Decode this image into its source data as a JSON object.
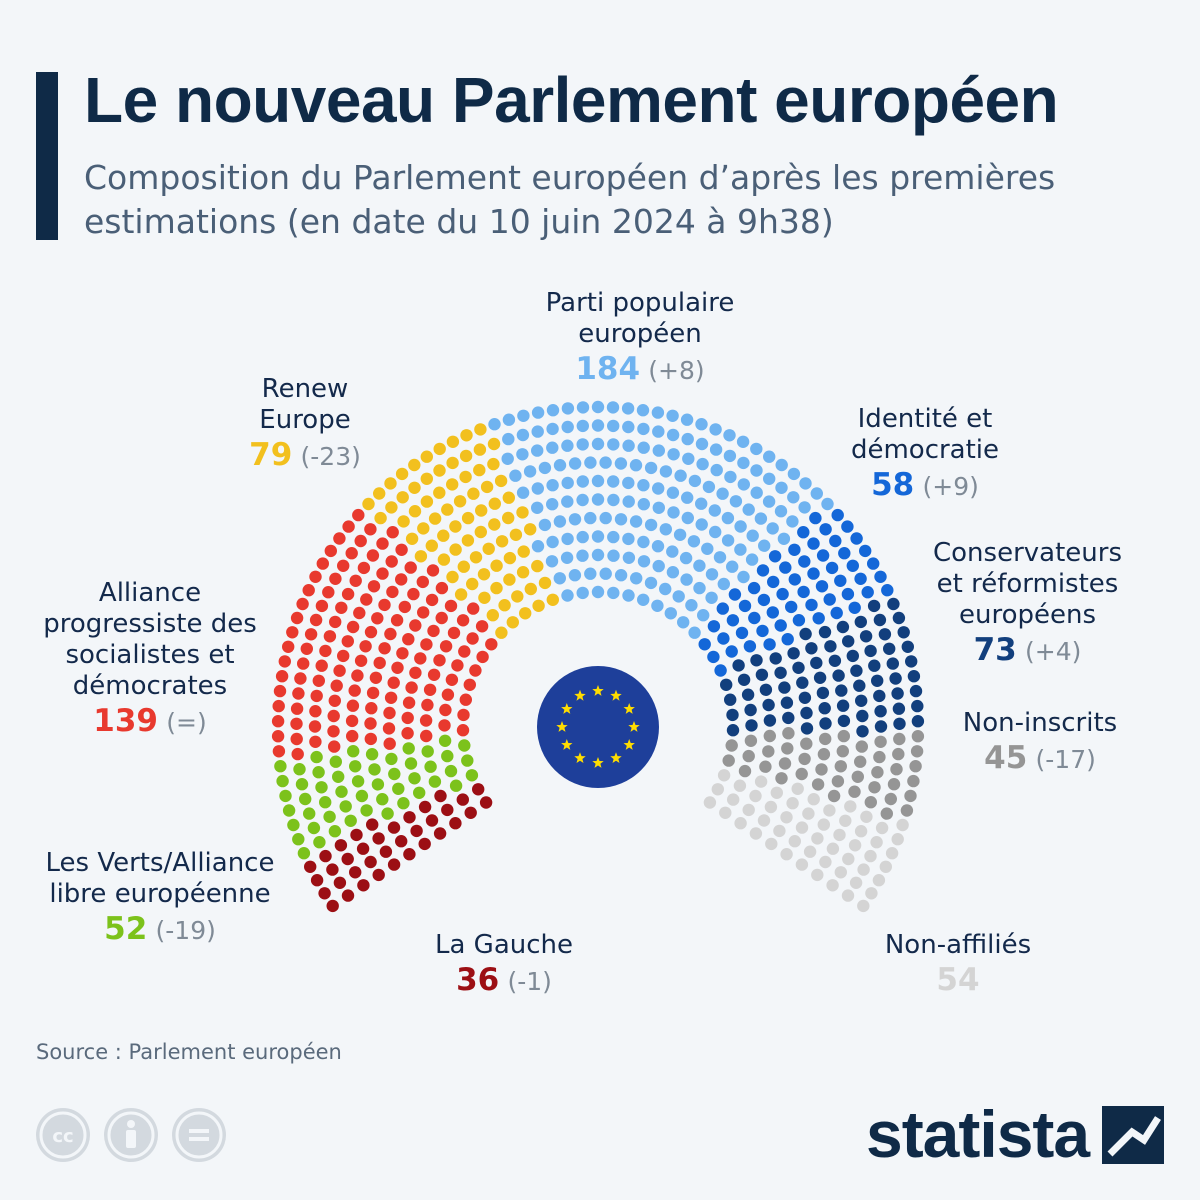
{
  "title": "Le nouveau Parlement européen",
  "subtitle": "Composition du Parlement européen d’après les premières estimations (en date du 10 juin 2024 à 9h38)",
  "source": "Source : Parlement européen",
  "brand": "statista",
  "chart_data": {
    "type": "parliament",
    "unit": "sièges",
    "groups": [
      {
        "key": "left",
        "label": "La Gauche",
        "seats": 36,
        "change": "(-1)",
        "color": "#9c0f14"
      },
      {
        "key": "greens",
        "label": "Les Verts/Alliance libre européenne",
        "seats": 52,
        "change": "(-19)",
        "color": "#7cc21b"
      },
      {
        "key": "sd",
        "label": "Alliance progressiste des socialistes et démocrates",
        "seats": 139,
        "change": "(=)",
        "color": "#e8392e"
      },
      {
        "key": "renew",
        "label": "Renew Europe",
        "seats": 79,
        "change": "(-23)",
        "color": "#f2c01e"
      },
      {
        "key": "epp",
        "label": "Parti populaire européen",
        "seats": 184,
        "change": "(+8)",
        "color": "#6fb3f0"
      },
      {
        "key": "id",
        "label": "Identité et démocratie",
        "seats": 58,
        "change": "(+9)",
        "color": "#1467d8"
      },
      {
        "key": "ecr",
        "label": "Conservateurs et réformistes européens",
        "seats": 73,
        "change": "(+4)",
        "color": "#123f7d"
      },
      {
        "key": "ni",
        "label": "Non-inscrits",
        "seats": 45,
        "change": "(-17)",
        "color": "#959595"
      },
      {
        "key": "other",
        "label": "Non-affiliés",
        "seats": 54,
        "change": "",
        "color": "#d4d4d4"
      }
    ]
  }
}
